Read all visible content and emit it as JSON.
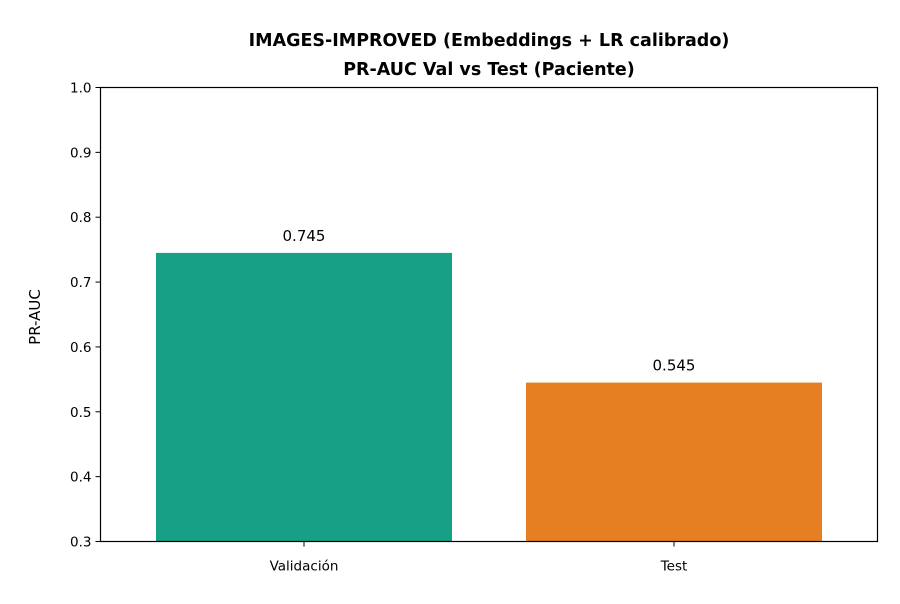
{
  "chart_data": {
    "type": "bar",
    "title_lines": [
      "IMAGES-IMPROVED (Embeddings + LR calibrado)",
      "PR-AUC Val vs Test (Paciente)"
    ],
    "xlabel": "",
    "ylabel": "PR-AUC",
    "ylim": [
      0.3,
      1.0
    ],
    "yticks": [
      "0.3",
      "0.4",
      "0.5",
      "0.6",
      "0.7",
      "0.8",
      "0.9",
      "1.0"
    ],
    "categories": [
      "Validación",
      "Test"
    ],
    "values": [
      0.745,
      0.545
    ],
    "value_labels": [
      "0.745",
      "0.545"
    ],
    "colors": [
      "#17a085",
      "#e67e22"
    ],
    "grid": false,
    "legend": "none"
  }
}
